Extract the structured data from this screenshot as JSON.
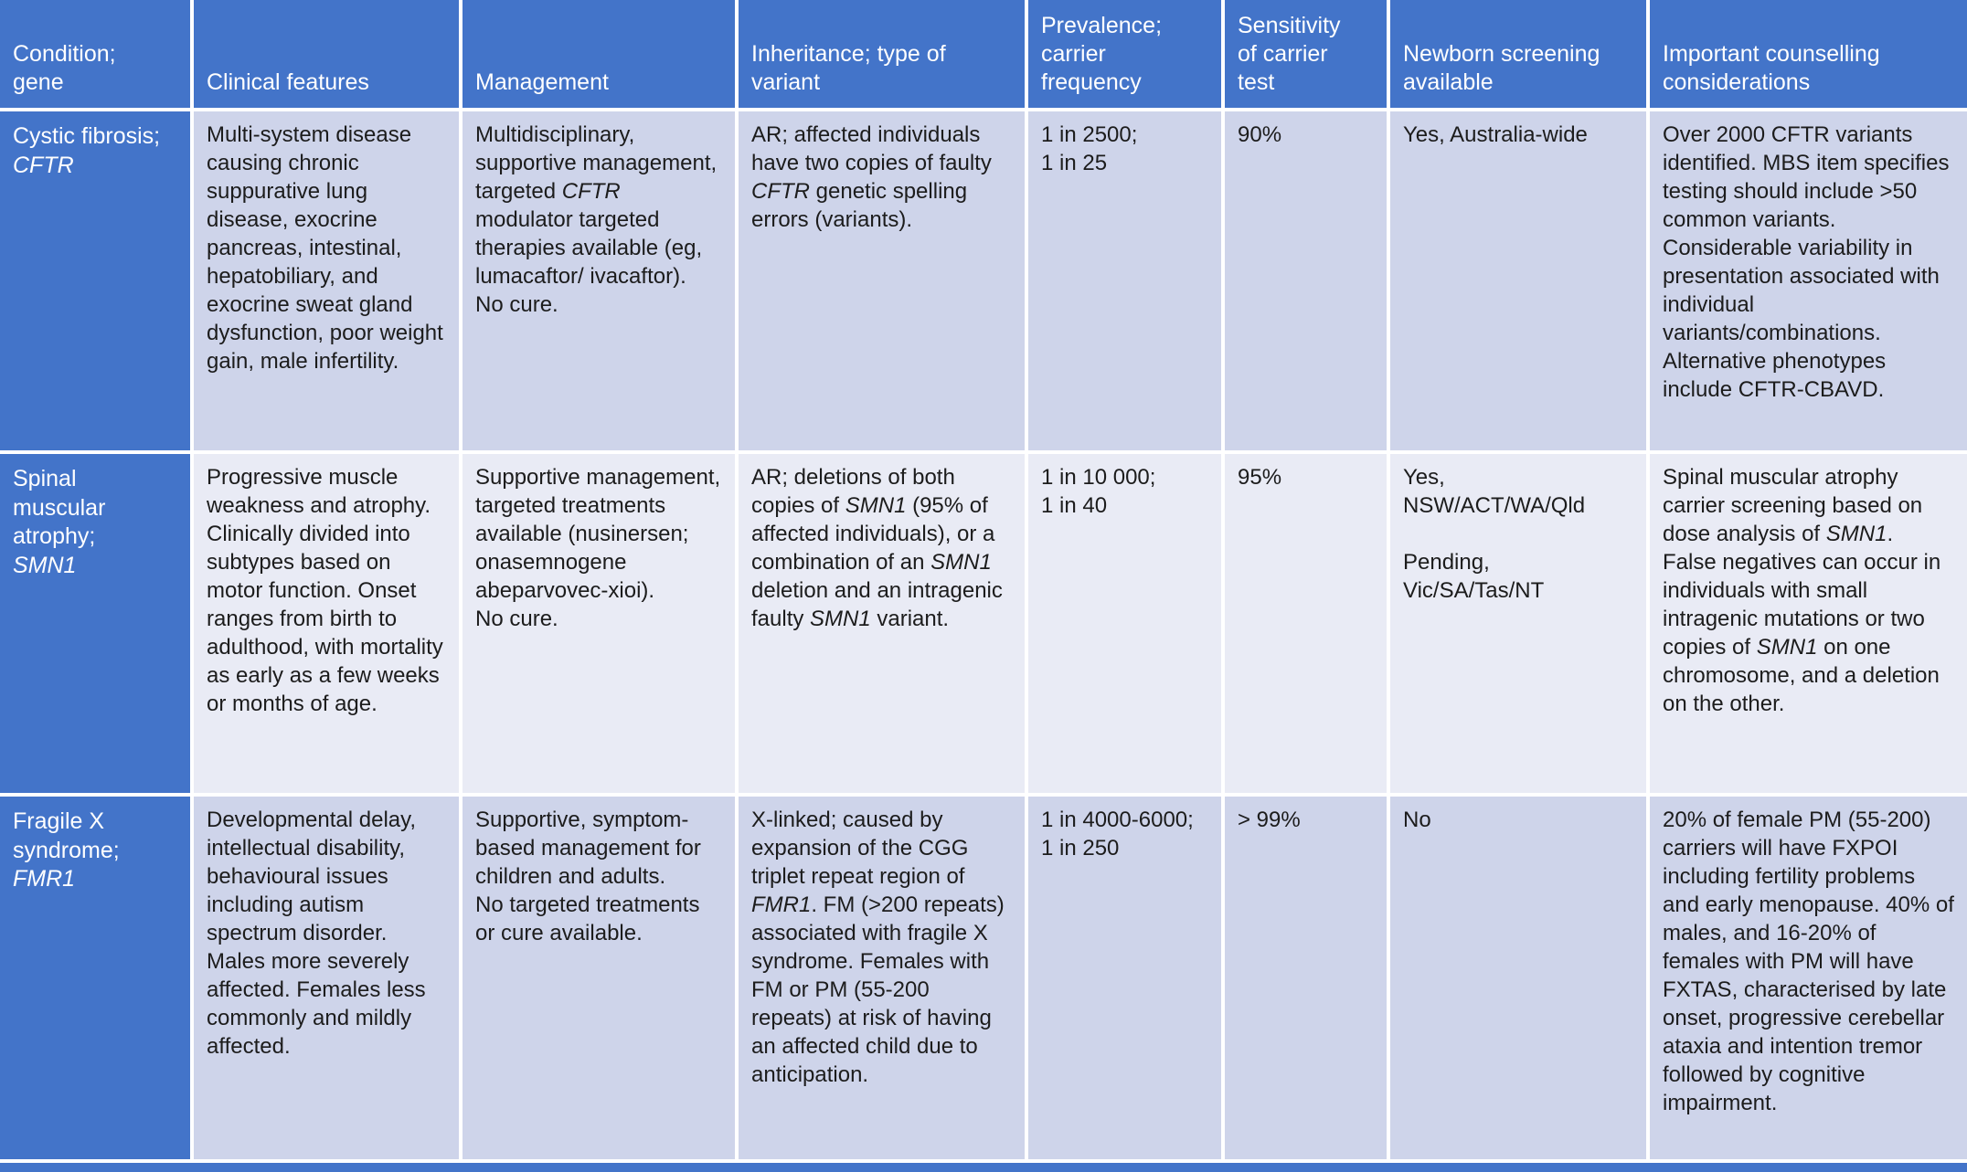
{
  "colors": {
    "header_bg": "#4374C9",
    "header_text": "#FFFFFF",
    "band_odd_bg": "#CED4EA",
    "band_even_bg": "#E9EBF5",
    "body_text": "#1C1C1C",
    "divider": "#FFFFFF"
  },
  "table": {
    "headers": [
      "Condition;\ngene",
      "Clinical features",
      "Management",
      "Inheritance; type of\nvariant",
      "Prevalence;\ncarrier\nfrequency",
      "Sensitivity\nof carrier\ntest",
      "Newborn screening\navailable",
      "Important counselling\nconsiderations"
    ],
    "rows": [
      {
        "condition": "Cystic fibrosis;\n*CFTR*",
        "clinical_features": "Multi-system disease causing chronic suppurative lung disease, exocrine pancreas, intestinal, hepatobiliary, and exocrine sweat gland dysfunction, poor weight gain, male infertility.",
        "management": "Multidisciplinary, supportive management, targeted *CFTR* modulator targeted therapies available (eg, lumacaftor/ ivacaftor).\nNo cure.",
        "inheritance": "AR; affected individuals have two copies of faulty *CFTR* genetic spelling errors (variants).",
        "prevalence": "1 in 2500;\n1 in 25",
        "sensitivity": "90%",
        "newborn_screening": "Yes, Australia-wide",
        "counselling": "Over 2000 CFTR variants identified. MBS item specifies testing should include >50 common variants.\nConsiderable variability in presentation associated with individual variants/combinations.\nAlternative phenotypes include CFTR-CBAVD."
      },
      {
        "condition": "Spinal\nmuscular\natrophy;\n*SMN1*",
        "clinical_features": "Progressive muscle weakness and atrophy. Clinically divided into subtypes based on motor function. Onset ranges from birth to adulthood, with mortality as early as a few weeks or months of age.",
        "management": "Supportive management, targeted treatments available (nusinersen; onasemnogene abeparvovec-xioi).\nNo cure.",
        "inheritance": "AR; deletions of both copies of *SMN1* (95% of affected individuals), or a combination of an *SMN1* deletion and an intragenic faulty *SMN1* variant.",
        "prevalence": "1 in 10 000;\n1 in 40",
        "sensitivity": "95%",
        "newborn_screening": "Yes,\nNSW/ACT/WA/Qld\n\nPending,\nVic/SA/Tas/NT",
        "counselling": "Spinal muscular atrophy carrier screening based on dose analysis of *SMN1*.\nFalse negatives can occur in individuals with small intragenic mutations or two copies of *SMN1* on one chromosome, and a deletion on the other."
      },
      {
        "condition": "Fragile X\nsyndrome;\n*FMR1*",
        "clinical_features": "Developmental delay, intellectual disability, behavioural issues including autism spectrum disorder. Males more severely affected. Females less commonly and mildly affected.",
        "management": "Supportive, symptom-based management for children and adults.\nNo targeted treatments or cure available.",
        "inheritance": "X-linked; caused by expansion of the CGG triplet repeat region of *FMR1*. FM (>200 repeats) associated with fragile X syndrome. Females with FM or PM (55-200 repeats) at risk of having an affected child due to anticipation.",
        "prevalence": "1 in 4000-6000;\n1 in 250",
        "sensitivity": "> 99%",
        "newborn_screening": "No",
        "counselling": "20% of female PM (55-200) carriers will have FXPOI including fertility problems and early menopause. 40% of males, and 16-20% of females with PM will have FXTAS, characterised by late onset, progressive cerebellar ataxia and intention tremor followed by cognitive impairment."
      }
    ]
  }
}
